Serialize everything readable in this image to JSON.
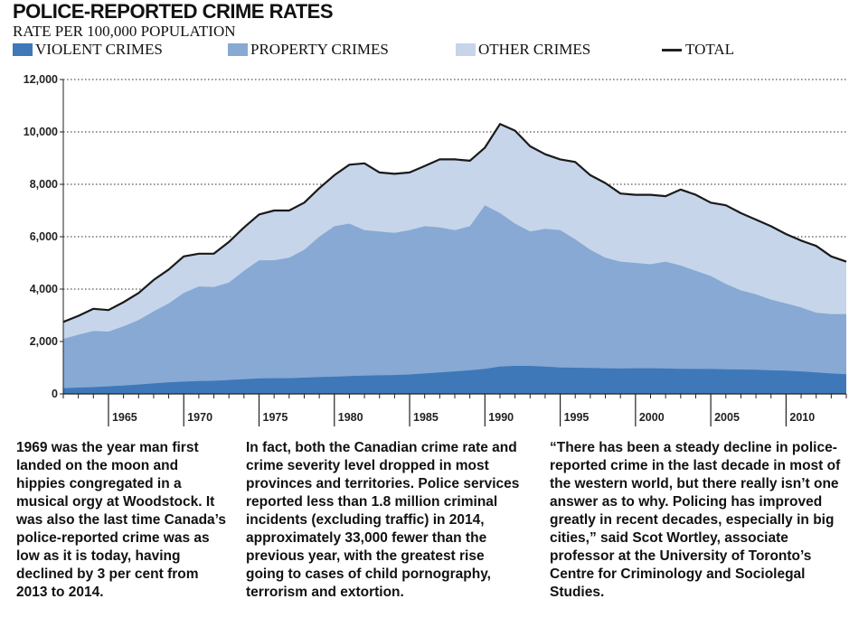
{
  "header": {
    "title": "POLICE-REPORTED CRIME RATES",
    "subtitle": "RATE PER 100,000 POPULATION"
  },
  "legend": {
    "violent": "VIOLENT CRIMES",
    "property": "PROPERTY CRIMES",
    "other": "OTHER CRIMES",
    "total": "TOTAL"
  },
  "colors": {
    "violent": "#3e78b9",
    "property": "#87a9d4",
    "other": "#c6d5ea",
    "total": "#1a1a1a"
  },
  "chart_data": {
    "type": "area",
    "title": "POLICE-REPORTED CRIME RATES",
    "ylabel": "RATE PER 100,000 POPULATION",
    "xlim": [
      1962,
      2014
    ],
    "ylim": [
      0,
      12000
    ],
    "y_ticks": [
      0,
      2000,
      4000,
      6000,
      8000,
      10000,
      12000
    ],
    "y_tick_labels": [
      "0",
      "2,000",
      "4,000",
      "6,000",
      "8,000",
      "10,000",
      "12,000"
    ],
    "x_ticks": [
      1965,
      1970,
      1975,
      1980,
      1985,
      1990,
      1995,
      2000,
      2005,
      2010
    ],
    "x": [
      1962,
      1963,
      1964,
      1965,
      1966,
      1967,
      1968,
      1969,
      1970,
      1971,
      1972,
      1973,
      1974,
      1975,
      1976,
      1977,
      1978,
      1979,
      1980,
      1981,
      1982,
      1983,
      1984,
      1985,
      1986,
      1987,
      1988,
      1989,
      1990,
      1991,
      1992,
      1993,
      1994,
      1995,
      1996,
      1997,
      1998,
      1999,
      2000,
      2001,
      2002,
      2003,
      2004,
      2005,
      2006,
      2007,
      2008,
      2009,
      2010,
      2011,
      2012,
      2013,
      2014
    ],
    "series": [
      {
        "name": "VIOLENT CRIMES",
        "stack": "cumulative",
        "values": [
          220,
          240,
          260,
          290,
          320,
          360,
          400,
          440,
          470,
          490,
          500,
          530,
          560,
          590,
          600,
          600,
          620,
          640,
          660,
          680,
          700,
          710,
          720,
          740,
          780,
          820,
          860,
          900,
          960,
          1040,
          1070,
          1070,
          1040,
          1010,
          1000,
          990,
          980,
          970,
          980,
          980,
          970,
          960,
          950,
          950,
          940,
          930,
          920,
          900,
          890,
          860,
          820,
          780,
          750
        ]
      },
      {
        "name": "PROPERTY CRIMES",
        "stack": "cumulative",
        "values": [
          2100,
          2260,
          2400,
          2380,
          2580,
          2820,
          3150,
          3450,
          3850,
          4100,
          4080,
          4250,
          4700,
          5100,
          5100,
          5200,
          5500,
          6000,
          6400,
          6500,
          6250,
          6200,
          6150,
          6250,
          6400,
          6350,
          6250,
          6400,
          7200,
          6900,
          6500,
          6200,
          6300,
          6250,
          5900,
          5500,
          5200,
          5050,
          5000,
          4950,
          5050,
          4900,
          4700,
          4500,
          4200,
          3950,
          3800,
          3600,
          3450,
          3300,
          3100,
          3050,
          3050
        ]
      },
      {
        "name": "TOTAL",
        "values": [
          2750,
          2980,
          3250,
          3200,
          3500,
          3850,
          4350,
          4750,
          5250,
          5350,
          5350,
          5800,
          6350,
          6850,
          7000,
          7000,
          7300,
          7850,
          8350,
          8750,
          8800,
          8450,
          8400,
          8450,
          8700,
          8950,
          8950,
          8900,
          9400,
          10300,
          10050,
          9450,
          9150,
          8950,
          8850,
          8350,
          8050,
          7650,
          7600,
          7600,
          7550,
          7800,
          7600,
          7300,
          7200,
          6900,
          6650,
          6400,
          6100,
          5850,
          5650,
          5250,
          5050
        ]
      }
    ]
  },
  "annotations": [
    "1969 was the year man first landed on the moon and hippies congregated in a musical orgy at Woodstock. It was also the last time Canada’s police-reported crime was as low as it is today, having declined by 3 per cent from 2013 to 2014.",
    "In fact, both the Canadian crime rate and crime severity level dropped in most provinces and territories. Police services reported less than 1.8 million criminal incidents (excluding traffic) in 2014, approximately 33,000 fewer than the previous year, with the greatest rise going to cases of child pornography, terrorism and extortion.",
    "“There has been a steady decline in police-reported crime in the last decade in most of the western world, but there really isn’t one answer as to why. Policing has improved greatly in recent decades, especially in big cities,” said Scot Wortley, associate professor at the University of Toronto’s Centre for Criminology and Sociolegal Studies."
  ]
}
